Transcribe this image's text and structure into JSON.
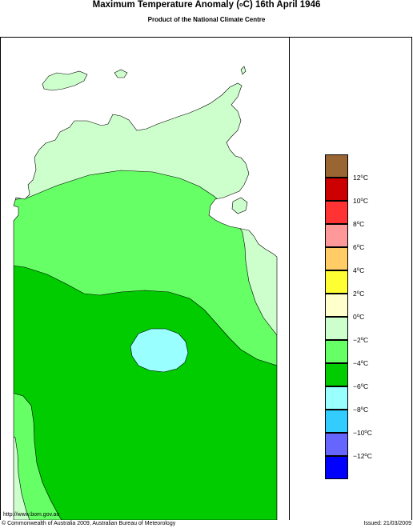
{
  "header": {
    "title_prefix": "Maximum Temperature Anomaly (",
    "title_degree": "o",
    "title_suffix": "C)  16th April 1946",
    "subtitle": "Product of the National Climate Centre"
  },
  "legend": {
    "unit_degree": "o",
    "unit_letter": "C",
    "bins": [
      {
        "color": "#996633",
        "label": "12"
      },
      {
        "color": "#cc0000",
        "label": "10"
      },
      {
        "color": "#ff3333",
        "label": "8"
      },
      {
        "color": "#ff9999",
        "label": "6"
      },
      {
        "color": "#ffcc66",
        "label": "4"
      },
      {
        "color": "#ffff33",
        "label": "2"
      },
      {
        "color": "#ffffcc",
        "label": "0"
      },
      {
        "color": "#ccffcc",
        "label": "−2"
      },
      {
        "color": "#66ff66",
        "label": "−4"
      },
      {
        "color": "#00cc00",
        "label": "−6"
      },
      {
        "color": "#99ffff",
        "label": "−8"
      },
      {
        "color": "#33ccff",
        "label": "−10"
      },
      {
        "color": "#6666ff",
        "label": "−12"
      },
      {
        "color": "#0000ff",
        "label": null
      }
    ]
  },
  "map": {
    "ocean_color": "#ffffff",
    "region": "Northern Territory, Australia",
    "anomaly_zones": [
      "0 to -2",
      "-2 to -4",
      "-4 to -6",
      "-6 to -8"
    ]
  },
  "footer": {
    "url": "http://www.bom.gov.au",
    "copyright": "© Commonwealth of Australia 2009, Australian Bureau of Meteorology",
    "issued": "Issued: 21/03/2009"
  }
}
